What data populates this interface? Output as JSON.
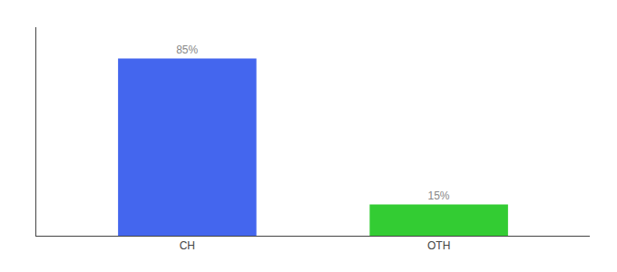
{
  "chart_data": {
    "type": "bar",
    "categories": [
      "CH",
      "OTH"
    ],
    "values": [
      85,
      15
    ],
    "value_labels": [
      "85%",
      "15%"
    ],
    "data_labels": true,
    "colors": [
      "#4466ee",
      "#33cc33"
    ],
    "ylim": [
      0,
      100
    ],
    "tick_labels": "x",
    "grid": false
  }
}
